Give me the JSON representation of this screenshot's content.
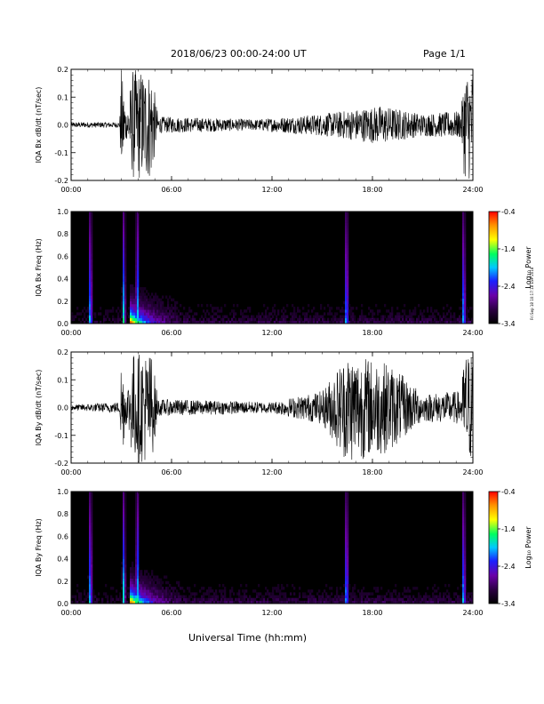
{
  "header": {
    "title": "2018/06/23  00:00-24:00 UT",
    "page": "Page 1/1"
  },
  "footer": {
    "xlabel": "Universal Time (hh:mm)",
    "stamp": "Fri Sep 18 10:17:18 EST 2018"
  },
  "colorbar": {
    "label": "Log₁₀ Power",
    "ticks": [
      "-0.4",
      "-1.4",
      "-2.4",
      "-3.4"
    ],
    "range": [
      -3.4,
      -0.4
    ]
  },
  "chart_data": [
    {
      "type": "line",
      "ylabel": "IQA Bx dB/dt (nT/sec)",
      "ylim": [
        -0.2,
        0.2
      ],
      "yticks": [
        "0.2",
        "0.1",
        "0.0",
        "-0.1",
        "-0.2"
      ],
      "xticks": [
        "00:00",
        "06:00",
        "12:00",
        "18:00",
        "24:00"
      ],
      "xlim": [
        0,
        24
      ],
      "envelope": [
        {
          "x": 0,
          "amp": 0.01
        },
        {
          "x": 2.9,
          "amp": 0.01
        },
        {
          "x": 3.0,
          "amp": 0.2
        },
        {
          "x": 3.3,
          "amp": 0.05
        },
        {
          "x": 3.7,
          "amp": 0.2
        },
        {
          "x": 4.8,
          "amp": 0.2
        },
        {
          "x": 5.2,
          "amp": 0.03
        },
        {
          "x": 11,
          "amp": 0.02
        },
        {
          "x": 15,
          "amp": 0.04
        },
        {
          "x": 18.5,
          "amp": 0.07
        },
        {
          "x": 21,
          "amp": 0.04
        },
        {
          "x": 23.3,
          "amp": 0.05
        },
        {
          "x": 23.5,
          "amp": 0.2
        },
        {
          "x": 24,
          "amp": 0.2
        }
      ]
    },
    {
      "type": "heatmap",
      "ylabel": "IQA Bx Freq (Hz)",
      "ylim": [
        0,
        1.0
      ],
      "yticks": [
        "1.0",
        "0.8",
        "0.6",
        "0.4",
        "0.2",
        "0.0"
      ],
      "xticks": [
        "00:00",
        "06:00",
        "12:00",
        "18:00",
        "24:00"
      ],
      "xlim": [
        0,
        24
      ],
      "bright_bands_hours": [
        1.1,
        3.1,
        3.9,
        16.4,
        23.4
      ]
    },
    {
      "type": "line",
      "ylabel": "IQA By dB/dt (nT/sec)",
      "ylim": [
        -0.2,
        0.2
      ],
      "yticks": [
        "0.2",
        "0.1",
        "0.0",
        "-0.1",
        "-0.2"
      ],
      "xticks": [
        "00:00",
        "06:00",
        "12:00",
        "18:00",
        "24:00"
      ],
      "xlim": [
        0,
        24
      ],
      "envelope": [
        {
          "x": 0,
          "amp": 0.01
        },
        {
          "x": 2.9,
          "amp": 0.02
        },
        {
          "x": 3.0,
          "amp": 0.2
        },
        {
          "x": 3.3,
          "amp": 0.05
        },
        {
          "x": 3.7,
          "amp": 0.2
        },
        {
          "x": 4.8,
          "amp": 0.2
        },
        {
          "x": 5.2,
          "amp": 0.03
        },
        {
          "x": 12,
          "amp": 0.02
        },
        {
          "x": 15,
          "amp": 0.06
        },
        {
          "x": 16.5,
          "amp": 0.2
        },
        {
          "x": 19,
          "amp": 0.16
        },
        {
          "x": 21,
          "amp": 0.05
        },
        {
          "x": 23.3,
          "amp": 0.06
        },
        {
          "x": 23.5,
          "amp": 0.2
        },
        {
          "x": 24,
          "amp": 0.2
        }
      ]
    },
    {
      "type": "heatmap",
      "ylabel": "IQA By Freq (Hz)",
      "ylim": [
        0,
        1.0
      ],
      "yticks": [
        "1.0",
        "0.8",
        "0.6",
        "0.4",
        "0.2",
        "0.0"
      ],
      "xticks": [
        "00:00",
        "06:00",
        "12:00",
        "18:00",
        "24:00"
      ],
      "xlim": [
        0,
        24
      ],
      "bright_bands_hours": [
        1.1,
        3.1,
        3.9,
        16.4,
        23.4
      ]
    }
  ]
}
